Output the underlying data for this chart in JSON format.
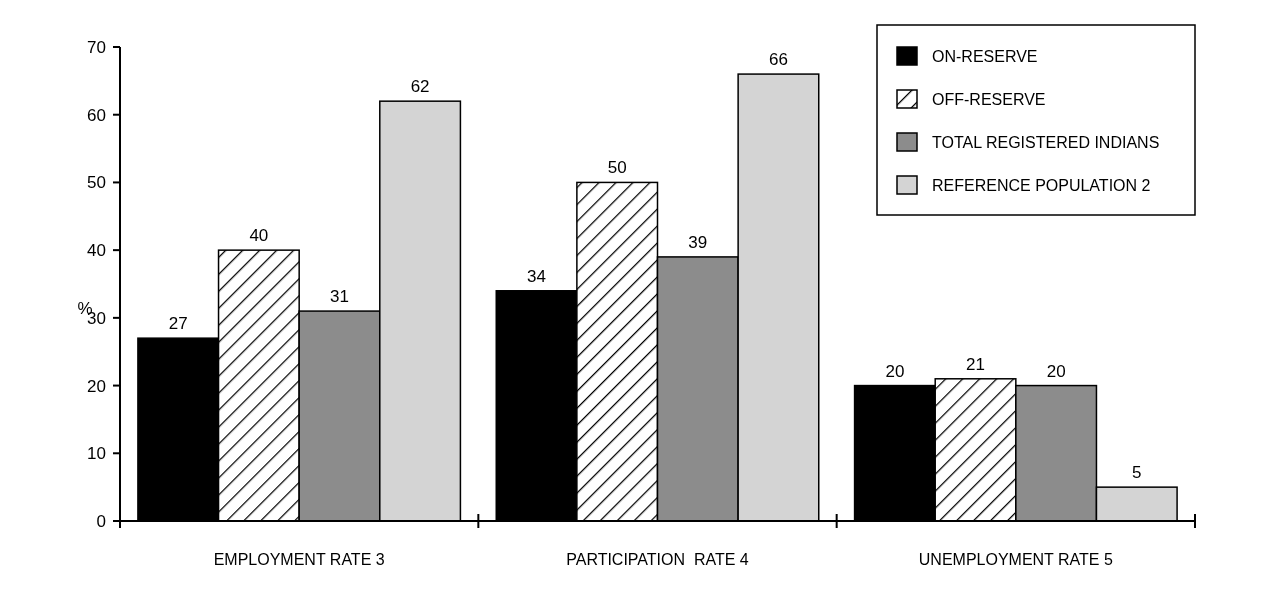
{
  "chart_data": {
    "type": "bar",
    "ylabel": "%",
    "categories": [
      "EMPLOYMENT RATE 3",
      "PARTICIPATION  RATE 4",
      "UNEMPLOYMENT RATE 5"
    ],
    "series": [
      {
        "name": "ON-RESERVE",
        "color": "#000000",
        "values": [
          27,
          34,
          20
        ]
      },
      {
        "name": "OFF-RESERVE",
        "color": "#000000",
        "values": [
          40,
          50,
          21
        ]
      },
      {
        "name": "TOTAL REGISTERED INDIANS",
        "color": "#8c8c8c",
        "values": [
          31,
          39,
          20
        ]
      },
      {
        "name": "REFERENCE POPULATION 2",
        "color": "#d4d4d4",
        "values": [
          62,
          66,
          5
        ]
      }
    ],
    "ylim": [
      0,
      70
    ],
    "yticks": [
      0,
      10,
      20,
      30,
      40,
      50,
      60,
      70
    ],
    "data_labels": true,
    "legend": "top right",
    "grid": false
  }
}
